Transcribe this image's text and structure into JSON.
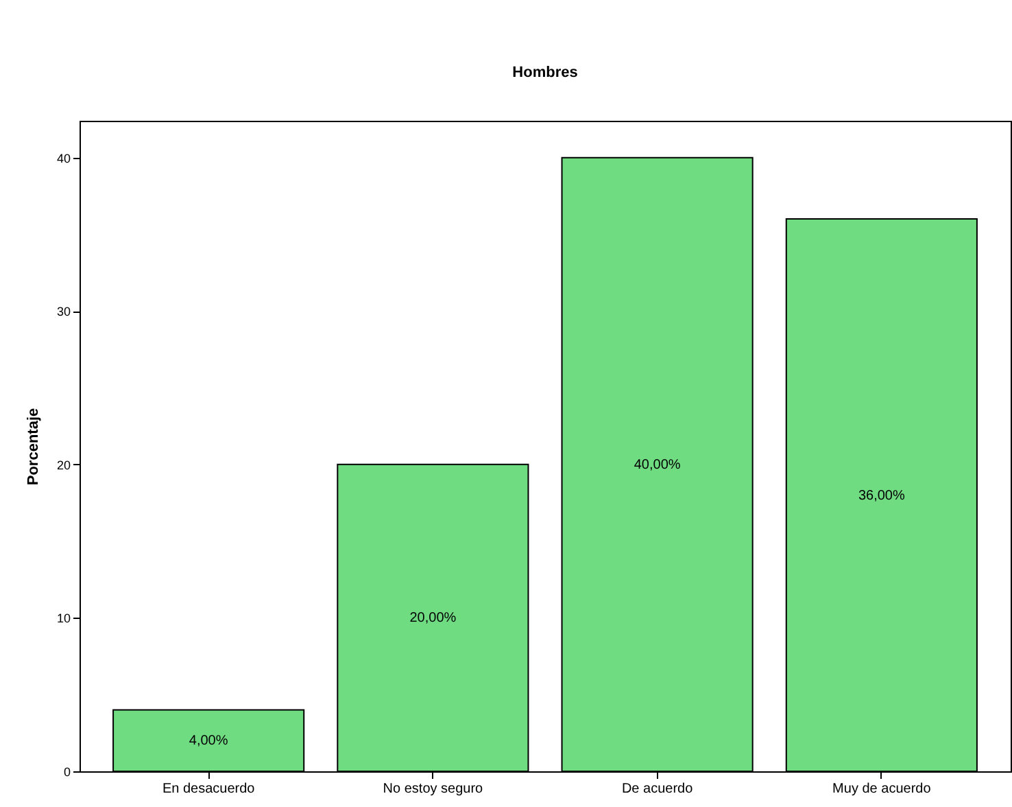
{
  "chart_data": {
    "type": "bar",
    "title": "Hombres",
    "ylabel": "Porcentaje",
    "categories": [
      "En desacuerdo",
      "No estoy seguro",
      "De acuerdo",
      "Muy de acuerdo"
    ],
    "values": [
      4,
      20,
      40,
      36
    ],
    "value_labels": [
      "4,00%",
      "20,00%",
      "40,00%",
      "36,00%"
    ],
    "color": "#70dc82",
    "ylim": [
      0,
      42.4
    ],
    "yticks": [
      0,
      10,
      20,
      30,
      40
    ],
    "grid": false
  }
}
